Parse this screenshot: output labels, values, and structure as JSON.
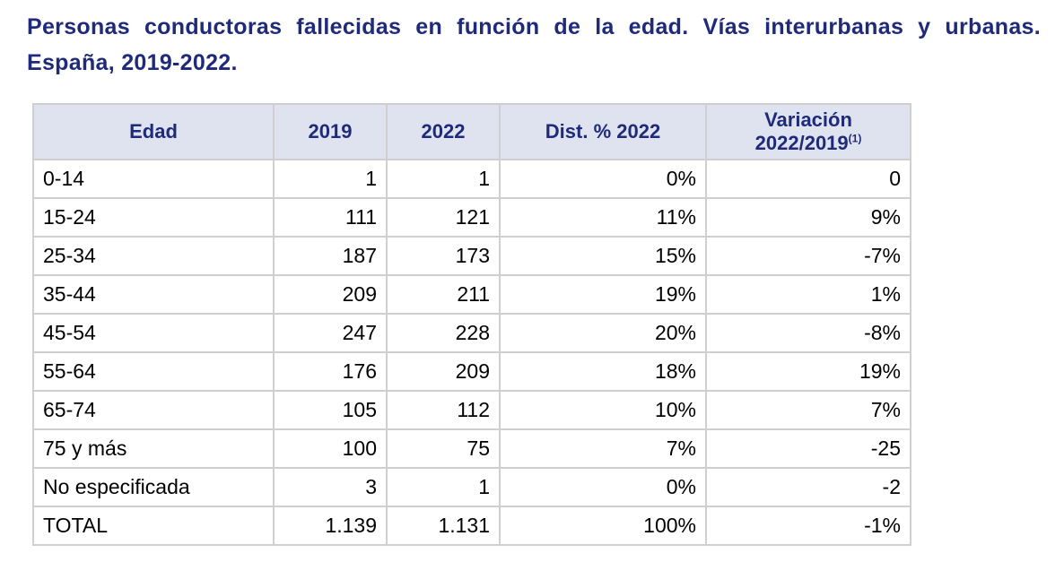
{
  "title": "Personas conductoras fallecidas en función de la edad. Vías interurbanas y urbanas. España, 2019-2022.",
  "table": {
    "headers": {
      "edad": "Edad",
      "y2019": "2019",
      "y2022": "2022",
      "dist": "Dist. % 2022",
      "var_line1": "Variación",
      "var_line2": "2022/2019",
      "var_note": "(1)"
    },
    "rows": [
      {
        "edad": "0-14",
        "y2019": "1",
        "y2022": "1",
        "dist": "0%",
        "var": "0"
      },
      {
        "edad": "15-24",
        "y2019": "111",
        "y2022": "121",
        "dist": "11%",
        "var": "9%"
      },
      {
        "edad": "25-34",
        "y2019": "187",
        "y2022": "173",
        "dist": "15%",
        "var": "-7%"
      },
      {
        "edad": "35-44",
        "y2019": "209",
        "y2022": "211",
        "dist": "19%",
        "var": "1%"
      },
      {
        "edad": "45-54",
        "y2019": "247",
        "y2022": "228",
        "dist": "20%",
        "var": "-8%"
      },
      {
        "edad": "55-64",
        "y2019": "176",
        "y2022": "209",
        "dist": "18%",
        "var": "19%"
      },
      {
        "edad": "65-74",
        "y2019": "105",
        "y2022": "112",
        "dist": "10%",
        "var": "7%"
      },
      {
        "edad": "75 y más",
        "y2019": "100",
        "y2022": "75",
        "dist": "7%",
        "var": "-25"
      },
      {
        "edad": "No especificada",
        "y2019": "3",
        "y2022": "1",
        "dist": "0%",
        "var": "-2"
      },
      {
        "edad": "TOTAL",
        "y2019": "1.139",
        "y2022": "1.131",
        "dist": "100%",
        "var": "-1%"
      }
    ]
  },
  "colors": {
    "title": "#1f2a7a",
    "header_bg": "#dfe3f0",
    "border": "#cfcfcf"
  }
}
